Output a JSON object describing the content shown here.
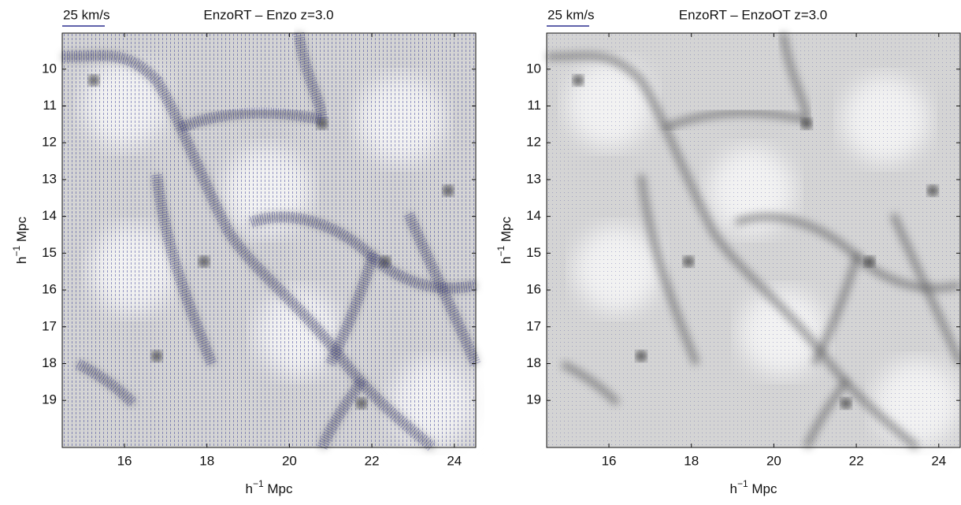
{
  "chart_data": [
    {
      "type": "quiver",
      "title": "EnzoRT – Enzo z=3.0",
      "scale_label": "25 km/s",
      "scale_color": "#2b2f8f",
      "xlabel": "h<sup>−1</sup> Mpc",
      "ylabel": "h<sup>−1</sup> Mpc",
      "xlim": [
        14.49,
        24.52
      ],
      "ylim": [
        20.28,
        9.02
      ],
      "y_reversed": true,
      "xticks": [
        16,
        18,
        20,
        22,
        24
      ],
      "yticks": [
        10,
        11,
        12,
        13,
        14,
        15,
        16,
        17,
        18,
        19
      ]
    },
    {
      "type": "quiver",
      "title": "EnzoRT – EnzoOT z=3.0",
      "scale_label": "25 km/s",
      "scale_color": "#2b2f8f",
      "xlabel": "h<sup>−1</sup> Mpc",
      "ylabel": "h<sup>−1</sup> Mpc",
      "xlim": [
        14.49,
        24.52
      ],
      "ylim": [
        20.28,
        9.02
      ],
      "y_reversed": true,
      "xticks": [
        16,
        18,
        20,
        22,
        24
      ],
      "yticks": [
        10,
        11,
        12,
        13,
        14,
        15,
        16,
        17,
        18,
        19
      ]
    }
  ]
}
